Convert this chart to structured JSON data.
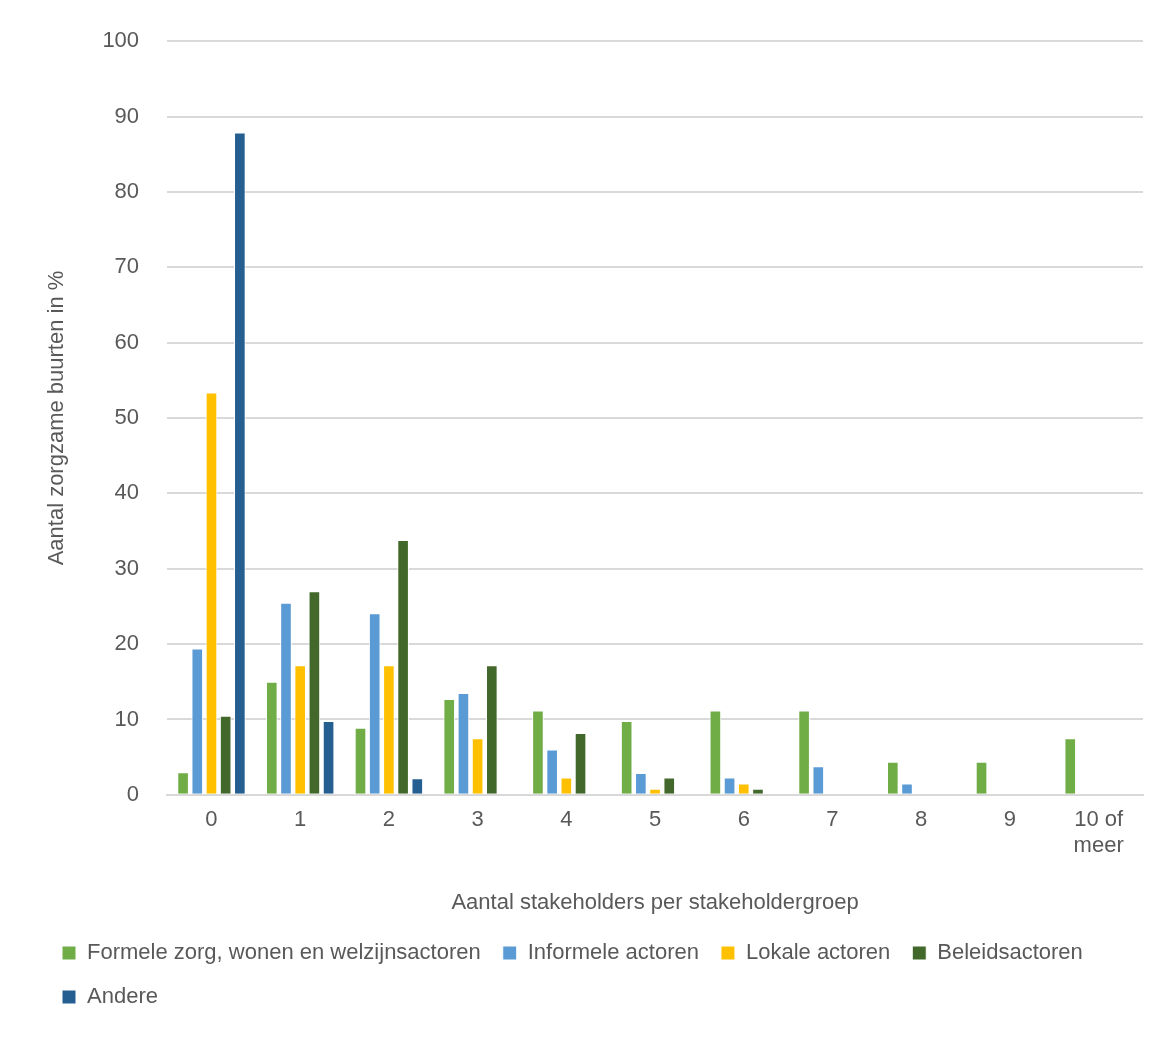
{
  "chart_data": {
    "type": "bar",
    "xlabel": "Aantal stakeholders per stakeholdergroep",
    "ylabel": "Aantal zorgzame buurten in %",
    "categories": [
      "0",
      "1",
      "2",
      "3",
      "4",
      "5",
      "6",
      "7",
      "8",
      "9",
      "10 of meer"
    ],
    "series": [
      {
        "name": "Formele zorg, wonen en welzijnsactoren",
        "color": "#70ad47",
        "values": [
          3,
          15,
          8.9,
          12.7,
          11.2,
          9.8,
          11.2,
          11.2,
          4.4,
          4.4,
          7.5
        ]
      },
      {
        "name": "Informele actoren",
        "color": "#5b9bd5",
        "values": [
          19.4,
          25.5,
          24.1,
          13.5,
          6,
          2.9,
          2.3,
          3.8,
          1.5,
          0,
          0
        ]
      },
      {
        "name": "Lokale actoren",
        "color": "#ffc000",
        "values": [
          53.4,
          17.2,
          17.2,
          7.5,
          2.3,
          0.8,
          1.5,
          0,
          0,
          0,
          0
        ]
      },
      {
        "name": "Beleidsactoren",
        "color": "#43682b",
        "values": [
          10.5,
          27,
          33.8,
          17.2,
          8.2,
          2.3,
          0.8,
          0,
          0,
          0,
          0
        ]
      },
      {
        "name": "Andere",
        "color": "#255e91",
        "values": [
          87.9,
          9.8,
          2.2,
          0,
          0,
          0,
          0,
          0,
          0,
          0,
          0
        ]
      }
    ],
    "ylim": [
      0,
      100
    ],
    "yticks": [
      0,
      10,
      20,
      30,
      40,
      50,
      60,
      70,
      80,
      90,
      100
    ],
    "grid": "y",
    "legend": "bottom"
  }
}
